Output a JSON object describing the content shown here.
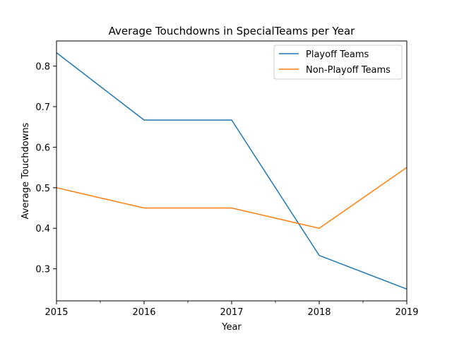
{
  "chart_data": {
    "type": "line",
    "title": "Average Touchdowns in SpecialTeams per Year",
    "xlabel": "Year",
    "ylabel": "Average Touchdowns",
    "x": [
      2015,
      2016,
      2017,
      2018,
      2019
    ],
    "x_tick_labels": [
      "2015",
      "2016",
      "2017",
      "2018",
      "2019"
    ],
    "y_ticks": [
      0.3,
      0.4,
      0.5,
      0.6,
      0.7,
      0.8
    ],
    "y_tick_labels": [
      "0.3",
      "0.4",
      "0.5",
      "0.6",
      "0.7",
      "0.8"
    ],
    "xlim": [
      2015,
      2019
    ],
    "ylim": [
      0.221,
      0.862
    ],
    "grid": false,
    "legend_position": "top-right",
    "series": [
      {
        "name": "Playoff Teams",
        "color": "#1f77b4",
        "values": [
          0.833,
          0.667,
          0.667,
          0.333,
          0.25
        ]
      },
      {
        "name": "Non-Playoff Teams",
        "color": "#ff7f0e",
        "values": [
          0.5,
          0.45,
          0.45,
          0.4,
          0.55
        ]
      }
    ]
  }
}
